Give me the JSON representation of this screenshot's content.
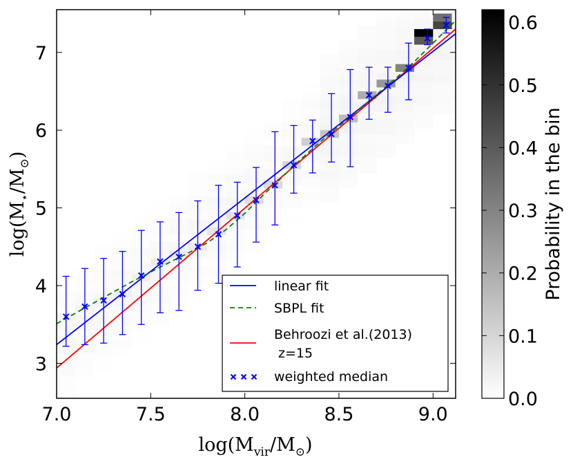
{
  "chart_data": {
    "type": "scatter",
    "xlabel_main": "log(M",
    "xlabel_sub": "vir",
    "xlabel_tail": "/M",
    "xlabel_sun": "⊙",
    "xlabel_close": ")",
    "ylabel_main": "log(M",
    "ylabel_sub": "⋆",
    "ylabel_tail": "/M",
    "ylabel_sun": "⊙",
    "ylabel_close": ")",
    "xlim": [
      7.0,
      9.12
    ],
    "ylim": [
      2.55,
      7.55
    ],
    "xticks": [
      7.0,
      7.5,
      8.0,
      8.5,
      9.0
    ],
    "xtick_labels": [
      "7.0",
      "7.5",
      "8.0",
      "8.5",
      "9.0"
    ],
    "yticks": [
      3,
      4,
      5,
      6,
      7
    ],
    "ytick_labels": [
      "3",
      "4",
      "5",
      "6",
      "7"
    ],
    "colorbar": {
      "label": "Probability in the bin",
      "range": [
        0.0,
        0.62
      ],
      "ticks": [
        0.0,
        0.1,
        0.2,
        0.3,
        0.4,
        0.5,
        0.6
      ],
      "tick_labels": [
        "0.0",
        "0.1",
        "0.2",
        "0.3",
        "0.4",
        "0.5",
        "0.6"
      ]
    },
    "heatmap_core": [
      {
        "x": 7.05,
        "y": 3.6,
        "p": 0.03
      },
      {
        "x": 7.15,
        "y": 3.7,
        "p": 0.03
      },
      {
        "x": 7.25,
        "y": 3.8,
        "p": 0.035
      },
      {
        "x": 7.35,
        "y": 3.9,
        "p": 0.04
      },
      {
        "x": 7.45,
        "y": 4.1,
        "p": 0.04
      },
      {
        "x": 7.55,
        "y": 4.3,
        "p": 0.045
      },
      {
        "x": 7.65,
        "y": 4.4,
        "p": 0.05
      },
      {
        "x": 7.75,
        "y": 4.5,
        "p": 0.05
      },
      {
        "x": 7.85,
        "y": 4.7,
        "p": 0.06
      },
      {
        "x": 7.95,
        "y": 4.9,
        "p": 0.07
      },
      {
        "x": 8.05,
        "y": 5.1,
        "p": 0.08
      },
      {
        "x": 8.15,
        "y": 5.3,
        "p": 0.09
      },
      {
        "x": 8.25,
        "y": 5.55,
        "p": 0.1
      },
      {
        "x": 8.35,
        "y": 5.85,
        "p": 0.12
      },
      {
        "x": 8.45,
        "y": 5.95,
        "p": 0.14
      },
      {
        "x": 8.55,
        "y": 6.15,
        "p": 0.16
      },
      {
        "x": 8.65,
        "y": 6.45,
        "p": 0.2
      },
      {
        "x": 8.75,
        "y": 6.6,
        "p": 0.25
      },
      {
        "x": 8.85,
        "y": 6.8,
        "p": 0.3
      },
      {
        "x": 8.95,
        "y": 7.15,
        "p": 0.4
      },
      {
        "x": 8.95,
        "y": 7.25,
        "p": 0.62
      },
      {
        "x": 9.05,
        "y": 7.35,
        "p": 0.45
      },
      {
        "x": 9.05,
        "y": 7.45,
        "p": 0.35
      }
    ],
    "median": {
      "x": [
        7.05,
        7.15,
        7.25,
        7.35,
        7.45,
        7.55,
        7.65,
        7.75,
        7.86,
        7.96,
        8.06,
        8.16,
        8.26,
        8.36,
        8.46,
        8.56,
        8.66,
        8.76,
        8.87,
        8.97,
        9.07
      ],
      "y": [
        3.6,
        3.73,
        3.81,
        3.89,
        4.13,
        4.31,
        4.37,
        4.5,
        4.66,
        4.9,
        5.1,
        5.29,
        5.55,
        5.86,
        5.95,
        6.17,
        6.45,
        6.57,
        6.8,
        7.18,
        7.35
      ],
      "yerr_low": [
        3.22,
        3.24,
        3.26,
        3.37,
        3.5,
        3.65,
        3.68,
        3.94,
        4.03,
        4.24,
        4.56,
        4.78,
        5.19,
        5.45,
        5.59,
        5.53,
        6.14,
        6.23,
        6.39,
        7.1,
        7.25
      ],
      "yerr_high": [
        4.12,
        4.22,
        4.35,
        4.44,
        4.71,
        4.82,
        4.94,
        5.09,
        5.29,
        5.33,
        5.52,
        5.98,
        6.06,
        6.13,
        6.47,
        6.78,
        6.81,
        6.81,
        7.12,
        7.3,
        7.45
      ]
    },
    "linear_fit": {
      "x": [
        7.0,
        9.12
      ],
      "y": [
        3.24,
        7.24
      ]
    },
    "behroozi": {
      "x": [
        7.0,
        9.12
      ],
      "y": [
        2.94,
        7.3
      ]
    },
    "sbpl_fit": {
      "x": [
        7.0,
        7.2,
        7.4,
        7.6,
        7.7,
        7.8,
        7.9,
        8.0,
        8.1,
        8.2,
        8.3,
        8.4,
        8.5,
        8.6,
        8.7,
        8.8,
        8.9,
        9.0,
        9.12
      ],
      "y": [
        3.51,
        3.78,
        4.05,
        4.3,
        4.42,
        4.55,
        4.72,
        4.93,
        5.17,
        5.4,
        5.63,
        5.85,
        6.05,
        6.25,
        6.46,
        6.66,
        6.88,
        7.12,
        7.41
      ]
    },
    "legend": [
      {
        "label": "linear fit",
        "color": "#0000ff",
        "style": "solid"
      },
      {
        "label": "SBPL fit",
        "color": "#007f00",
        "style": "dashed"
      },
      {
        "label": "Behroozi et al.(2013)",
        "label2": "z=15",
        "color": "#ff0000",
        "style": "solid"
      },
      {
        "label": "weighted median",
        "color": "#0000ff",
        "style": "marker-x"
      }
    ],
    "legend_position": "lower-right"
  }
}
